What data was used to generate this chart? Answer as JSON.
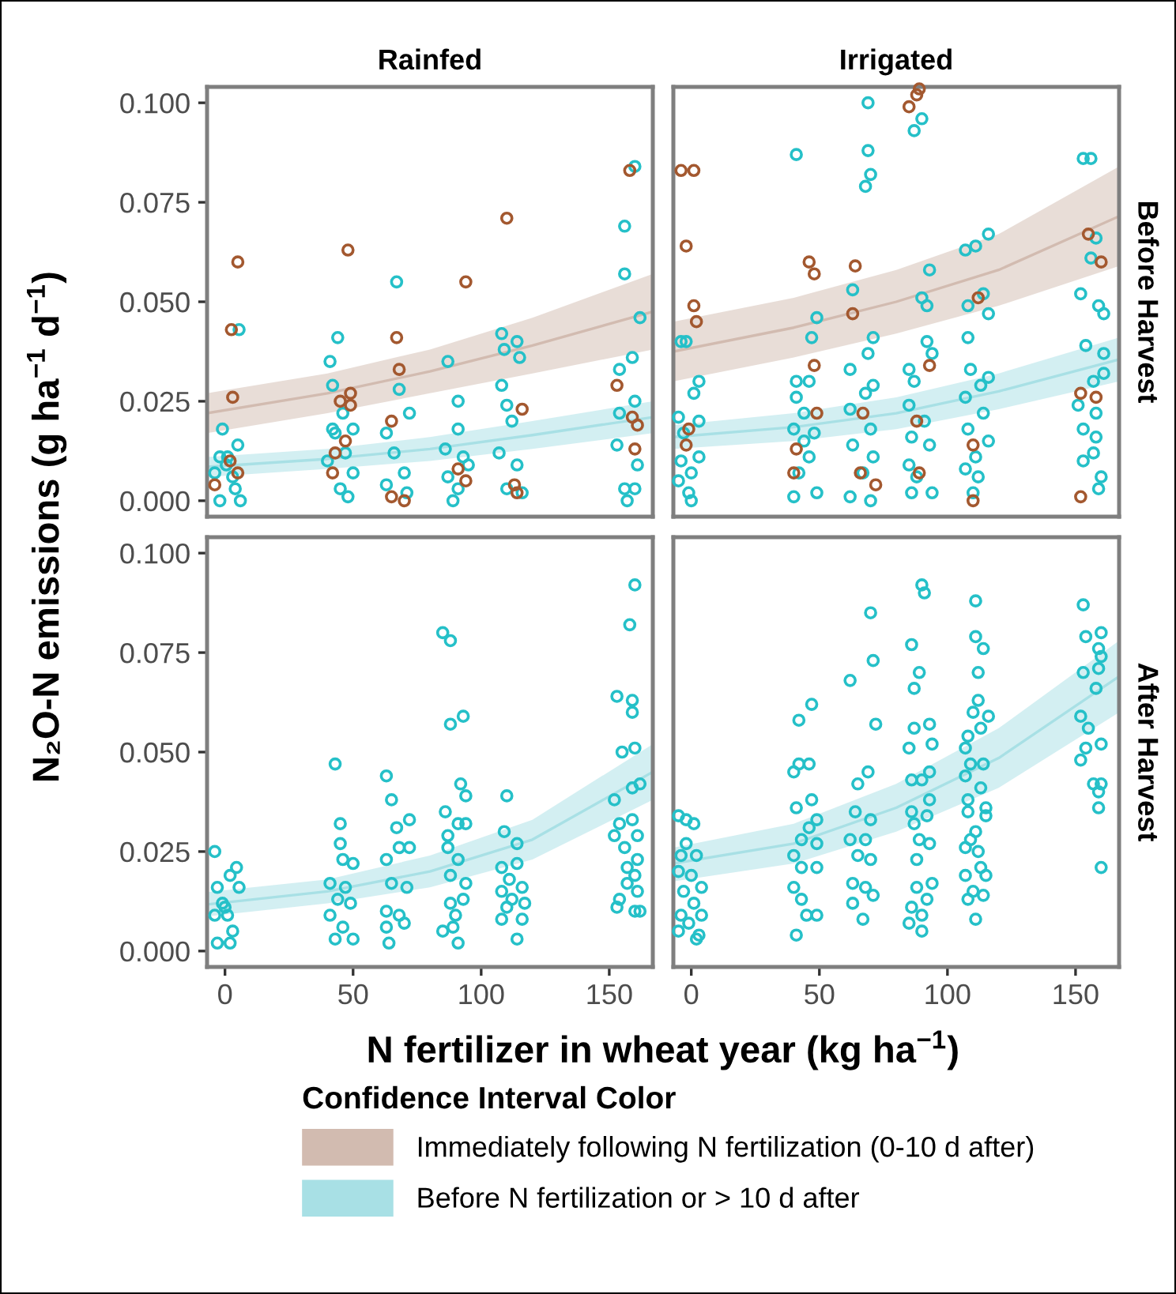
{
  "chart_data": [
    {
      "type": "scatter",
      "title": "Rainfed",
      "ylabel": "N₂O-N emissions (g ha$^{−1}$ d$^{−1}$)",
      "legend_title": "Confidence Interval Color",
      "legend": "bottom",
      "grid": false,
      "tick_labels": "y",
      "xlim": [
        -7,
        167
      ],
      "ylim": [
        -0.004,
        0.104
      ],
      "yticks": [
        {
          "value": 0,
          "label": "0.000"
        },
        {
          "value": 0.025,
          "label": "0.025"
        },
        {
          "value": 0.05,
          "label": "0.050"
        },
        {
          "value": 0.075,
          "label": "0.075"
        },
        {
          "value": 0.1,
          "label": "0.100"
        }
      ],
      "series": [
        {
          "type": "line",
          "name": "Immediately following N fertilization (0-10 d after)",
          "color": "#d2bbb0",
          "x": [
            -7,
            40,
            80,
            120,
            167
          ],
          "values": [
            0.022,
            0.027,
            0.0325,
            0.039,
            0.0475
          ],
          "lower": [
            0.017,
            0.022,
            0.027,
            0.032,
            0.038
          ],
          "upper": [
            0.027,
            0.032,
            0.038,
            0.046,
            0.057
          ]
        },
        {
          "type": "line",
          "name": "Before N fertilization or > 10 d after",
          "color": "#a8e0e5",
          "x": [
            -7,
            40,
            80,
            120,
            167
          ],
          "values": [
            0.0085,
            0.0105,
            0.013,
            0.0165,
            0.021
          ],
          "lower": [
            0.006,
            0.008,
            0.01,
            0.013,
            0.017
          ],
          "upper": [
            0.011,
            0.013,
            0.016,
            0.02,
            0.025
          ]
        },
        {
          "marker": "circle",
          "color": "#25c0c8",
          "x": [
            5.5,
            -1,
            5,
            -2,
            0.5,
            3,
            -2,
            6,
            -4,
            4,
            1,
            44,
            41,
            42,
            46,
            42,
            50,
            47,
            40,
            50,
            45,
            48,
            43,
            67,
            68,
            72,
            63,
            66,
            70,
            63,
            71,
            87,
            91,
            91,
            86,
            93,
            87,
            91,
            89,
            95,
            108,
            114,
            109,
            115,
            108,
            110,
            112,
            107,
            114,
            110,
            116,
            160,
            156,
            156,
            162,
            159,
            154,
            154,
            160,
            153,
            161,
            156,
            160,
            157
          ],
          "values": [
            0.043,
            0.018,
            0.014,
            0.011,
            0.009,
            0.006,
            0.0,
            0.0,
            0.007,
            0.003,
            0.011,
            0.041,
            0.035,
            0.029,
            0.022,
            0.018,
            0.018,
            0.012,
            0.01,
            0.007,
            0.003,
            0.001,
            0.017,
            0.055,
            0.028,
            0.022,
            0.017,
            0.012,
            0.007,
            0.004,
            0.002,
            0.035,
            0.025,
            0.018,
            0.013,
            0.011,
            0.006,
            0.003,
            0.0,
            0.009,
            0.042,
            0.04,
            0.038,
            0.036,
            0.029,
            0.024,
            0.02,
            0.012,
            0.009,
            0.003,
            0.002,
            0.084,
            0.069,
            0.057,
            0.046,
            0.036,
            0.033,
            0.022,
            0.025,
            0.014,
            0.009,
            0.003,
            0.003,
            0.0
          ]
        },
        {
          "marker": "circle",
          "color": "#a3582f",
          "x": [
            -4,
            2.5,
            5,
            3,
            2,
            5,
            48,
            45,
            49,
            49,
            47,
            43,
            42,
            67,
            68,
            65,
            70,
            65,
            94,
            91,
            94,
            110,
            116,
            113,
            114,
            158,
            153,
            159,
            161,
            160
          ],
          "values": [
            0.004,
            0.043,
            0.06,
            0.026,
            0.01,
            0.007,
            0.063,
            0.025,
            0.027,
            0.024,
            0.015,
            0.012,
            0.007,
            0.041,
            0.033,
            0.02,
            0.0,
            0.001,
            0.055,
            0.008,
            0.005,
            0.071,
            0.023,
            0.004,
            0.002,
            0.083,
            0.029,
            0.021,
            0.019,
            0.013
          ]
        }
      ]
    },
    {
      "type": "scatter",
      "title": "Irrigated",
      "annotations": [
        "Before Harvest"
      ],
      "grid": false,
      "tick_labels": false,
      "xlim": [
        -7,
        167
      ],
      "ylim": [
        -0.004,
        0.104
      ],
      "series": [
        {
          "type": "line",
          "color": "#d2bbb0",
          "x": [
            -7,
            40,
            80,
            120,
            167
          ],
          "values": [
            0.0375,
            0.0435,
            0.05,
            0.058,
            0.0715
          ],
          "lower": [
            0.03,
            0.036,
            0.042,
            0.049,
            0.059
          ],
          "upper": [
            0.045,
            0.051,
            0.058,
            0.067,
            0.084
          ]
        },
        {
          "type": "line",
          "color": "#a8e0e5",
          "x": [
            -7,
            40,
            80,
            120,
            167
          ],
          "values": [
            0.016,
            0.0185,
            0.022,
            0.0275,
            0.0355
          ],
          "lower": [
            0.013,
            0.015,
            0.018,
            0.023,
            0.03
          ],
          "upper": [
            0.019,
            0.022,
            0.026,
            0.032,
            0.041
          ]
        },
        {
          "marker": "circle",
          "color": "#25c0c8",
          "x": [
            -4,
            -2,
            3,
            1,
            -5,
            3,
            -3,
            3,
            -4,
            0,
            -5,
            0,
            -1,
            41,
            49,
            47,
            41,
            46,
            41,
            44,
            40,
            48,
            44,
            46,
            42,
            49,
            40,
            69,
            69,
            70,
            68,
            63,
            71,
            69,
            62,
            71,
            68,
            62,
            70,
            63,
            71,
            67,
            62,
            70,
            90,
            87,
            93,
            90,
            92,
            92,
            94,
            85,
            87,
            85,
            91,
            86,
            93,
            85,
            88,
            86,
            94,
            116,
            111,
            107,
            114,
            108,
            116,
            108,
            109,
            116,
            113,
            107,
            114,
            108,
            116,
            111,
            107,
            112,
            110,
            153,
            156,
            158,
            156,
            152,
            159,
            161,
            154,
            161,
            161,
            157,
            151,
            158,
            153,
            158,
            153,
            157,
            160,
            159
          ],
          "values": [
            0.04,
            0.04,
            0.03,
            0.027,
            0.021,
            0.02,
            0.017,
            0.011,
            0.01,
            0.007,
            0.005,
            0.0,
            0.002,
            0.087,
            0.046,
            0.041,
            0.03,
            0.03,
            0.026,
            0.022,
            0.018,
            0.017,
            0.015,
            0.011,
            0.007,
            0.002,
            0.001,
            0.1,
            0.088,
            0.082,
            0.079,
            0.053,
            0.041,
            0.037,
            0.033,
            0.029,
            0.027,
            0.023,
            0.018,
            0.014,
            0.011,
            0.007,
            0.001,
            0.0,
            0.096,
            0.093,
            0.058,
            0.051,
            0.049,
            0.04,
            0.037,
            0.033,
            0.03,
            0.024,
            0.02,
            0.016,
            0.014,
            0.009,
            0.006,
            0.002,
            0.002,
            0.067,
            0.064,
            0.063,
            0.052,
            0.049,
            0.047,
            0.041,
            0.033,
            0.031,
            0.029,
            0.026,
            0.022,
            0.018,
            0.015,
            0.011,
            0.008,
            0.006,
            0.002,
            0.086,
            0.086,
            0.066,
            0.061,
            0.052,
            0.049,
            0.047,
            0.039,
            0.037,
            0.032,
            0.03,
            0.024,
            0.022,
            0.018,
            0.016,
            0.01,
            0.012,
            0.006,
            0.003
          ]
        },
        {
          "marker": "circle",
          "color": "#a3582f",
          "x": [
            -4,
            1,
            -2,
            1,
            2,
            -1,
            -2,
            46,
            48,
            48,
            49,
            41,
            40,
            64,
            63,
            67,
            66,
            72,
            85,
            88,
            89,
            112,
            93,
            88,
            110,
            110,
            89,
            155,
            160,
            152,
            158,
            152
          ],
          "values": [
            0.083,
            0.083,
            0.064,
            0.049,
            0.045,
            0.018,
            0.014,
            0.06,
            0.057,
            0.034,
            0.022,
            0.013,
            0.007,
            0.059,
            0.047,
            0.022,
            0.007,
            0.004,
            0.099,
            0.102,
            0.1035,
            0.051,
            0.034,
            0.02,
            0.014,
            0.0,
            0.007,
            0.067,
            0.06,
            0.027,
            0.026,
            0.001
          ]
        }
      ]
    },
    {
      "type": "scatter",
      "xlabel": "N fertilizer in wheat year (kg ha$^{−1}$)",
      "grid": false,
      "xlim": [
        -7,
        167
      ],
      "xticks": [
        0,
        50,
        100,
        150
      ],
      "ylim": [
        -0.004,
        0.104
      ],
      "yticks": [
        {
          "value": 0,
          "label": "0.000"
        },
        {
          "value": 0.025,
          "label": "0.025"
        },
        {
          "value": 0.05,
          "label": "0.050"
        },
        {
          "value": 0.075,
          "label": "0.075"
        },
        {
          "value": 0.1,
          "label": "0.100"
        }
      ],
      "series": [
        {
          "type": "line",
          "color": "#a8e0e5",
          "x": [
            -7,
            40,
            80,
            120,
            167
          ],
          "values": [
            0.0117,
            0.015,
            0.02,
            0.028,
            0.045
          ],
          "lower": [
            0.0087,
            0.012,
            0.016,
            0.023,
            0.038
          ],
          "upper": [
            0.0148,
            0.018,
            0.024,
            0.033,
            0.052
          ]
        },
        {
          "marker": "circle",
          "color": "#25c0c8",
          "x": [
            -4,
            -3,
            2,
            4.5,
            -1,
            5.5,
            1,
            -4,
            3,
            -3,
            2,
            0,
            43,
            45,
            45,
            46,
            50,
            41,
            47,
            44,
            49,
            41,
            46,
            43,
            50,
            63,
            65,
            67,
            72,
            63,
            68,
            72,
            65,
            71,
            63,
            68,
            70,
            63,
            64,
            85,
            88,
            88,
            93,
            92,
            94,
            86,
            87,
            91,
            94,
            87,
            91,
            88,
            94,
            88,
            93,
            90,
            85,
            89,
            91,
            110,
            109,
            114,
            108,
            114,
            111,
            108,
            116,
            112,
            110,
            117,
            108,
            116,
            114,
            160,
            158,
            153,
            159,
            159,
            155,
            160,
            159,
            162,
            152,
            154,
            159,
            152,
            161,
            156,
            161,
            157,
            160,
            157,
            161,
            154,
            153,
            160,
            162
          ],
          "values": [
            0.025,
            0.016,
            0.019,
            0.021,
            0.012,
            0.016,
            0.009,
            0.009,
            0.005,
            0.002,
            0.002,
            0.011,
            0.047,
            0.032,
            0.027,
            0.023,
            0.022,
            0.017,
            0.016,
            0.013,
            0.012,
            0.009,
            0.006,
            0.003,
            0.003,
            0.044,
            0.038,
            0.031,
            0.033,
            0.023,
            0.026,
            0.026,
            0.017,
            0.016,
            0.01,
            0.009,
            0.007,
            0.006,
            0.002,
            0.08,
            0.078,
            0.057,
            0.059,
            0.042,
            0.039,
            0.035,
            0.029,
            0.032,
            0.032,
            0.026,
            0.023,
            0.019,
            0.017,
            0.012,
            0.013,
            0.009,
            0.005,
            0.006,
            0.002,
            0.039,
            0.03,
            0.027,
            0.021,
            0.022,
            0.018,
            0.015,
            0.016,
            0.013,
            0.011,
            0.012,
            0.008,
            0.008,
            0.003,
            0.092,
            0.082,
            0.064,
            0.063,
            0.06,
            0.05,
            0.051,
            0.041,
            0.042,
            0.038,
            0.032,
            0.033,
            0.029,
            0.029,
            0.026,
            0.023,
            0.021,
            0.019,
            0.017,
            0.015,
            0.013,
            0.011,
            0.01,
            0.01
          ]
        }
      ]
    },
    {
      "type": "scatter",
      "annotations": [
        "After Harvest"
      ],
      "grid": false,
      "tick_labels": "x",
      "xlim": [
        -7,
        167
      ],
      "xticks": [
        0,
        50,
        100,
        150
      ],
      "ylim": [
        -0.004,
        0.104
      ],
      "series": [
        {
          "type": "line",
          "color": "#a8e0e5",
          "x": [
            -7,
            40,
            80,
            120,
            167
          ],
          "values": [
            0.022,
            0.027,
            0.036,
            0.0485,
            0.069
          ],
          "lower": [
            0.0175,
            0.022,
            0.03,
            0.041,
            0.06
          ],
          "upper": [
            0.026,
            0.032,
            0.042,
            0.056,
            0.078
          ]
        },
        {
          "marker": "circle",
          "color": "#25c0c8",
          "x": [
            -5,
            -2,
            1,
            -2,
            -4,
            2,
            -5,
            0,
            4,
            -3,
            1,
            -4,
            4,
            -1,
            -5,
            2,
            3,
            47,
            42,
            40,
            42,
            46,
            41,
            47,
            49,
            46,
            43,
            49,
            40,
            43,
            49,
            40,
            43,
            45,
            49,
            41,
            70,
            71,
            62,
            72,
            69,
            65,
            64,
            70,
            62,
            68,
            65,
            70,
            63,
            68,
            63,
            71,
            67,
            90,
            91,
            86,
            89,
            87,
            87,
            93,
            94,
            85,
            86,
            90,
            93,
            93,
            86,
            92,
            87,
            89,
            93,
            88,
            94,
            88,
            86,
            92,
            90,
            85,
            90,
            111,
            111,
            114,
            112,
            112,
            110,
            116,
            113,
            108,
            107,
            109,
            114,
            107,
            113,
            108,
            108,
            115,
            115,
            111,
            109,
            112,
            107,
            113,
            107,
            115,
            110,
            108,
            114,
            111,
            153,
            160,
            154,
            159,
            160,
            153,
            159,
            158,
            152,
            155,
            160,
            154,
            152,
            157,
            160,
            159,
            159,
            160
          ],
          "values": [
            0.034,
            0.033,
            0.032,
            0.027,
            0.024,
            0.024,
            0.02,
            0.019,
            0.016,
            0.015,
            0.012,
            0.009,
            0.009,
            0.007,
            0.005,
            0.003,
            0.004,
            0.062,
            0.058,
            0.045,
            0.047,
            0.047,
            0.036,
            0.038,
            0.033,
            0.031,
            0.028,
            0.027,
            0.024,
            0.021,
            0.021,
            0.016,
            0.013,
            0.009,
            0.009,
            0.004,
            0.085,
            0.073,
            0.068,
            0.057,
            0.045,
            0.042,
            0.035,
            0.033,
            0.028,
            0.028,
            0.024,
            0.023,
            0.017,
            0.016,
            0.012,
            0.014,
            0.008,
            0.092,
            0.09,
            0.077,
            0.07,
            0.066,
            0.056,
            0.057,
            0.052,
            0.051,
            0.043,
            0.043,
            0.045,
            0.038,
            0.035,
            0.034,
            0.032,
            0.028,
            0.027,
            0.023,
            0.017,
            0.016,
            0.011,
            0.013,
            0.009,
            0.007,
            0.005,
            0.088,
            0.079,
            0.076,
            0.07,
            0.063,
            0.06,
            0.059,
            0.056,
            0.054,
            0.051,
            0.047,
            0.047,
            0.044,
            0.041,
            0.038,
            0.035,
            0.036,
            0.034,
            0.03,
            0.028,
            0.025,
            0.026,
            0.021,
            0.019,
            0.019,
            0.015,
            0.013,
            0.014,
            0.008,
            0.087,
            0.08,
            0.079,
            0.076,
            0.074,
            0.07,
            0.071,
            0.066,
            0.059,
            0.056,
            0.052,
            0.051,
            0.048,
            0.042,
            0.042,
            0.04,
            0.036,
            0.021
          ]
        }
      ]
    }
  ]
}
